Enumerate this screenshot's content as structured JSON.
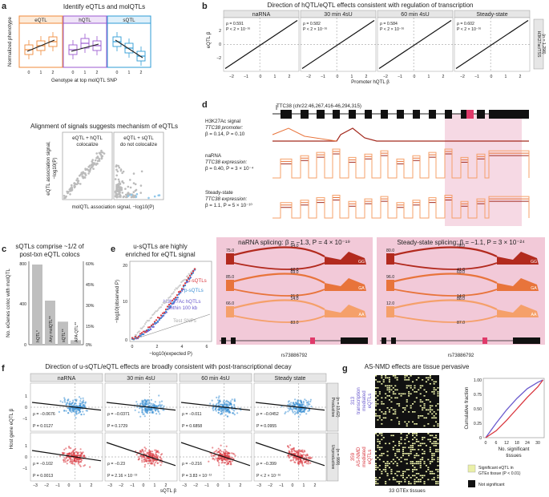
{
  "panel_labels": {
    "a": "a",
    "b": "b",
    "c": "c",
    "d": "d",
    "e": "e",
    "f": "f",
    "g": "g"
  },
  "colors": {
    "eqtl": "#f08a3a",
    "hqtl": "#9b59d0",
    "sqtl": "#2e9bd6",
    "red": "#d9363e",
    "blue": "#3b8fd4",
    "purple": "#6a5acd",
    "pink": "#f2c9d8",
    "dark_red": "#a32a1e",
    "orange": "#e8743b",
    "light_orange": "#f5a06a"
  },
  "panel_a": {
    "title": "Identify eQTLs and molQTLs",
    "facets": [
      "eQTL",
      "hQTL",
      "sQTL"
    ],
    "ylabel": "Normalized phenotype",
    "xlabel": "Genotype at top molQTL SNP",
    "ticks": [
      "0",
      "1",
      "2"
    ],
    "subtitle": "Alignment of signals suggests mechanism of eQTLs",
    "scatter_left_label_1": "eQTL + hQTL",
    "scatter_left_label_2": "colocalize",
    "scatter_right_label_1": "eQTL + sQTL",
    "scatter_right_label_2": "do not colocalize",
    "scatter_ylabel_1": "eQTL association signal,",
    "scatter_ylabel_2": "−log10(P)",
    "scatter_xlabel": "molQTL association signal, −log10(P)"
  },
  "panel_b": {
    "title": "Direction of hQTL/eQTL effects consistent with regulation of transcription",
    "ylabel": "eQTL β",
    "xlabel": "Promoter hQTL β",
    "strip_right_1": "H3K27ac/TSS",
    "strip_right_2": "(n = 1,298)",
    "ticks_y": [
      "2",
      "0",
      "−2"
    ],
    "ticks_x": [
      "−2",
      "−1",
      "0",
      "1",
      "2"
    ],
    "facets": [
      {
        "name": "naRNA",
        "rho": "ρ = 0.591",
        "p": "P < 2 × 10⁻¹⁶"
      },
      {
        "name": "30 min 4sU",
        "rho": "ρ = 0.582",
        "p": "P < 2 × 10⁻¹⁶"
      },
      {
        "name": "60 min 4sU",
        "rho": "ρ = 0.584",
        "p": "P < 2 × 10⁻¹⁶"
      },
      {
        "name": "Steady-state",
        "rho": "ρ = 0.602",
        "p": "P < 2 × 10⁻¹⁶"
      }
    ]
  },
  "panel_c": {
    "title_1": "sQTLs comprise ~1/2 of",
    "title_2": "post-txn eQTL colocs",
    "ylabel": "No. eGenes coloc with molQTL",
    "y_ticks": [
      "800",
      "400",
      "0"
    ],
    "right_ticks": [
      "60%",
      "45%",
      "30%",
      "15%",
      "0%"
    ],
    "bars": [
      {
        "label": "hQTL*",
        "value": 800
      },
      {
        "label": "Any molQTL**",
        "value": 440
      },
      {
        "label": "sQTL**",
        "value": 230
      },
      {
        "label": "APA QTL**",
        "value": 45
      }
    ]
  },
  "panel_d": {
    "gene_label": "TTC38 (chr22:46,267,416-46,294,315)",
    "track1_1": "H3K27Ac signal",
    "track1_2": "TTC38 promoter:",
    "track1_3": "β = 0.14, P = 0.10",
    "track2_1": "naRNA",
    "track2_2": "TTC38 expression:",
    "track2_3": "β = 0.40, P = 3 × 10⁻⁴",
    "track3_1": "Steady-state",
    "track3_2": "TTC38 expression:",
    "track3_3": "β = 1.1, P = 5 × 10⁻¹⁰",
    "splice_left_title": "naRNA splicing: β = −1.3, P = 4 × 10⁻¹⁹",
    "splice_right_title": "Steady-state splicing: β = −1.1, P = 3 × 10⁻²⁴",
    "genotypes": [
      "GG",
      "GA",
      "AA"
    ],
    "left_nums": [
      "75.0",
      "94.0",
      "62.0",
      "85.0",
      "69.0",
      "21.0",
      "66.0",
      "14.0",
      "83.0",
      "57.0",
      "5.5",
      "7.5"
    ],
    "right_nums": [
      "80.0",
      "78.0",
      "41.0",
      "96.0",
      "69.0",
      "14.0",
      "12.0",
      "88.0",
      "87.0",
      "1.8",
      "3.1"
    ],
    "snp_left": "rs73886792",
    "snp_right": "rs73886792"
  },
  "panel_e": {
    "title_1": "u-sQTLs are highly",
    "title_2": "enriched for eQTL signal",
    "ylabel": "−log10(observed P)",
    "xlabel": "−log10(expected P)",
    "y_ticks": [
      "20",
      "10",
      "0"
    ],
    "x_ticks": [
      "0",
      "2",
      "4",
      "6"
    ],
    "legend": [
      "u-sQTLs",
      "p-sQTLs",
      "H3K27Ac hQTLs",
      "within 100 kb",
      "Test SNPs"
    ]
  },
  "panel_f": {
    "title": "Direction of u-sQTL/eQTL effects are broadly consistent with post-transcriptional decay",
    "ylabel": "Host gene eQTL β",
    "xlabel": "sQTL β",
    "ticks_y": [
      "1",
      "0",
      "−1"
    ],
    "ticks_x": [
      "−3",
      "−2",
      "−1",
      "0",
      "1",
      "2"
    ],
    "strip_top": "Productive",
    "strip_top_n": "(n = 13,62)",
    "strip_bot": "Unproductive",
    "strip_bot_n": "(n = 999)",
    "facets": [
      {
        "name": "naRNA",
        "top_rho": "ρ = −0.0676",
        "top_p": "P = 0.0127",
        "bot_rho": "ρ = −0.102",
        "bot_p": "P = 0.0013"
      },
      {
        "name": "30 min 4sU",
        "top_rho": "ρ = −0.0371",
        "top_p": "P = 0.1729",
        "bot_rho": "ρ = −0.23",
        "bot_p": "P = 2.16 × 10⁻¹³"
      },
      {
        "name": "60 min 4sU",
        "top_rho": "ρ = −0.011",
        "top_p": "P = 0.6858",
        "bot_rho": "ρ = −0.216",
        "bot_p": "P = 3.83 × 10⁻¹²"
      },
      {
        "name": "Steady state",
        "top_rho": "ρ = −0.0452",
        "top_p": "P = 0.0955",
        "bot_rho": "ρ = −0.399",
        "bot_p": "P < 2 × 10⁻¹⁶"
      }
    ]
  },
  "panel_g": {
    "title": "AS-NMD effects are tissue pervasive",
    "top_label_1": "313",
    "top_label_2": "transcription",
    "top_label_3": "mediated",
    "top_label_4": "eQTLs",
    "bot_label_1": "359",
    "bot_label_2": "AS-NMD",
    "bot_label_3": "mediated",
    "bot_label_4": "eQTLs",
    "xlabel": "33 GTEx tissues",
    "cdf_ylabel": "Cumulative fraction",
    "cdf_xlabel_1": "No. significant",
    "cdf_xlabel_2": "tissues",
    "cdf_y_ticks": [
      "1.00",
      "0.75",
      "0.50",
      "0.25",
      "0"
    ],
    "cdf_x_ticks": [
      "0",
      "6",
      "12",
      "18",
      "24",
      "30"
    ],
    "legend_sig_1": "Significant eQTL in",
    "legend_sig_2": "GTEx tissue (P < 0.01)",
    "legend_ns": "Not significant"
  },
  "chart_data": [
    {
      "type": "bar",
      "title": "sQTLs comprise ~1/2 of post-txn eQTL colocs",
      "categories": [
        "hQTL*",
        "Any molQTL**",
        "sQTL**",
        "APA QTL**"
      ],
      "values": [
        800,
        440,
        230,
        45
      ],
      "ylabel": "No. eGenes coloc with molQTL",
      "ylim": [
        0,
        800
      ]
    },
    {
      "type": "scatter",
      "title": "Direction of hQTL/eQTL effects consistent with regulation of transcription",
      "xlabel": "Promoter hQTL β",
      "ylabel": "eQTL β",
      "series": [
        {
          "name": "naRNA",
          "rho": 0.591
        },
        {
          "name": "30 min 4sU",
          "rho": 0.582
        },
        {
          "name": "60 min 4sU",
          "rho": 0.584
        },
        {
          "name": "Steady-state",
          "rho": 0.602
        }
      ],
      "xlim": [
        -2.5,
        2.5
      ],
      "ylim": [
        -3,
        3
      ]
    },
    {
      "type": "scatter",
      "title": "Direction of u-sQTL/eQTL effects are broadly consistent with post-transcriptional decay",
      "xlabel": "sQTL β",
      "ylabel": "Host gene eQTL β",
      "series": [
        {
          "name": "naRNA Productive",
          "rho": -0.0676
        },
        {
          "name": "30 min 4sU Productive",
          "rho": -0.0371
        },
        {
          "name": "60 min 4sU Productive",
          "rho": -0.011
        },
        {
          "name": "Steady state Productive",
          "rho": -0.0452
        },
        {
          "name": "naRNA Unproductive",
          "rho": -0.102
        },
        {
          "name": "30 min 4sU Unproductive",
          "rho": -0.23
        },
        {
          "name": "60 min 4sU Unproductive",
          "rho": -0.216
        },
        {
          "name": "Steady state Unproductive",
          "rho": -0.399
        }
      ],
      "xlim": [
        -3.5,
        2.5
      ],
      "ylim": [
        -1.5,
        1.5
      ]
    },
    {
      "type": "line",
      "title": "AS-NMD effects are tissue pervasive",
      "xlabel": "No. significant tissues",
      "ylabel": "Cumulative fraction",
      "x": [
        0,
        6,
        12,
        18,
        24,
        30,
        33
      ],
      "series": [
        {
          "name": "transcription mediated eQTLs",
          "values": [
            0.0,
            0.25,
            0.48,
            0.68,
            0.85,
            0.96,
            1.0
          ]
        },
        {
          "name": "AS-NMD mediated eQTLs",
          "values": [
            0.0,
            0.12,
            0.3,
            0.5,
            0.7,
            0.88,
            1.0
          ]
        }
      ],
      "ylim": [
        0,
        1
      ]
    }
  ]
}
